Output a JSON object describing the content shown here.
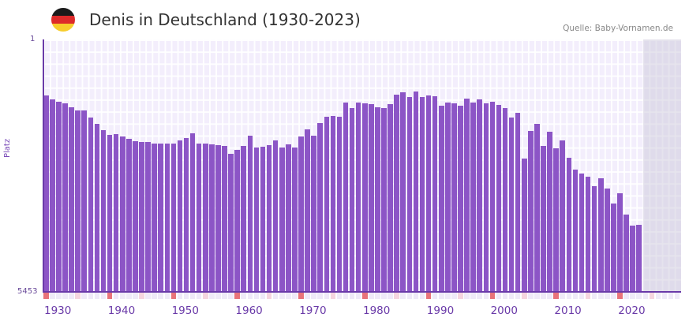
{
  "header": {
    "title": "Denis in Deutschland (1930-2023)",
    "source": "Quelle: Baby-Vornamen.de",
    "flag_colors": [
      "#1a1a1a",
      "#dd2a2a",
      "#f7cd2c"
    ]
  },
  "axis": {
    "y_top_label": "1",
    "y_bottom_label": "5453",
    "y_title": "Platz",
    "x_ticks": [
      "1930",
      "1940",
      "1950",
      "1960",
      "1970",
      "1980",
      "1990",
      "2000",
      "2010",
      "2020"
    ]
  },
  "colors": {
    "bar": "#8c55c6",
    "axis": "#6a3aa8",
    "decade_marker": "#e8737a",
    "half_decade_marker": "#f5d5df",
    "year_marker": "#efeaf8"
  },
  "chart_data": {
    "type": "bar",
    "title": "Denis in Deutschland (1930-2023)",
    "xlabel": "",
    "ylabel": "Platz",
    "y_inverted": true,
    "ylim": [
      1,
      5453
    ],
    "x_range_shown": [
      1930,
      2029
    ],
    "future_shaded_from": 2024,
    "grid": true,
    "x": [
      1930,
      1931,
      1932,
      1933,
      1934,
      1935,
      1936,
      1937,
      1938,
      1939,
      1940,
      1941,
      1942,
      1943,
      1944,
      1945,
      1946,
      1947,
      1948,
      1949,
      1950,
      1951,
      1952,
      1953,
      1954,
      1955,
      1956,
      1957,
      1958,
      1959,
      1960,
      1961,
      1962,
      1963,
      1964,
      1965,
      1966,
      1967,
      1968,
      1969,
      1970,
      1971,
      1972,
      1973,
      1974,
      1975,
      1976,
      1977,
      1978,
      1979,
      1980,
      1981,
      1982,
      1983,
      1984,
      1985,
      1986,
      1987,
      1988,
      1989,
      1990,
      1991,
      1992,
      1993,
      1994,
      1995,
      1996,
      1997,
      1998,
      1999,
      2000,
      2001,
      2002,
      2003,
      2004,
      2005,
      2006,
      2007,
      2008,
      2009,
      2010,
      2011,
      2012,
      2013,
      2014,
      2015,
      2016,
      2017,
      2018,
      2019,
      2020,
      2021,
      2022,
      2023
    ],
    "values": [
      1210,
      1295,
      1346,
      1380,
      1465,
      1533,
      1533,
      1687,
      1823,
      1959,
      2061,
      2044,
      2095,
      2146,
      2197,
      2214,
      2214,
      2248,
      2248,
      2248,
      2248,
      2180,
      2129,
      2027,
      2248,
      2248,
      2265,
      2282,
      2299,
      2470,
      2384,
      2299,
      2078,
      2333,
      2316,
      2282,
      2180,
      2333,
      2265,
      2333,
      2095,
      1942,
      2078,
      1806,
      1670,
      1653,
      1670,
      1363,
      1482,
      1363,
      1380,
      1397,
      1465,
      1482,
      1397,
      1193,
      1142,
      1244,
      1125,
      1244,
      1210,
      1227,
      1431,
      1363,
      1380,
      1431,
      1278,
      1363,
      1295,
      1380,
      1346,
      1414,
      1482,
      1687,
      1585,
      2572,
      1976,
      1823,
      2299,
      1993,
      2350,
      2180,
      2555,
      2811,
      2896,
      2964,
      3168,
      2998,
      3219,
      3543,
      3321,
      3782,
      4020,
      4003
    ]
  }
}
